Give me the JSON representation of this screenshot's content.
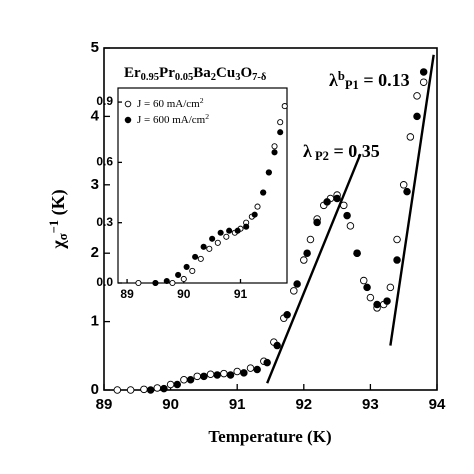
{
  "chart_data": [
    {
      "type": "scatter",
      "title": [
        {
          "text": "Er"
        },
        {
          "text": "0.95",
          "script": "sub"
        },
        {
          "text": "Pr"
        },
        {
          "text": "0.05",
          "script": "sub"
        },
        {
          "text": "Ba"
        },
        {
          "text": "2",
          "script": "sub"
        },
        {
          "text": "Cu"
        },
        {
          "text": "3",
          "script": "sub"
        },
        {
          "text": "O"
        },
        {
          "text": "7-δ",
          "script": "sub"
        }
      ],
      "xlabel": "Temperature (K)",
      "ylabel": [
        {
          "text": "χ"
        },
        {
          "text": "σ",
          "script": "sub"
        },
        {
          "text": "−1",
          "script": "sup"
        },
        {
          "text": " (K)"
        }
      ],
      "xlim": [
        89,
        94
      ],
      "ylim": [
        0,
        5
      ],
      "xticks": [
        89,
        90,
        91,
        92,
        93,
        94
      ],
      "yticks": [
        0,
        1,
        2,
        3,
        4,
        5
      ],
      "series": [
        {
          "marker": "open",
          "color": "#000000",
          "x": [
            89.2,
            89.4,
            89.6,
            89.8,
            90.0,
            90.2,
            90.4,
            90.6,
            90.8,
            91.0,
            91.2,
            91.4,
            91.55,
            91.7,
            91.85,
            92.0,
            92.1,
            92.2,
            92.3,
            92.4,
            92.5,
            92.6,
            92.7,
            92.8,
            92.9,
            93.0,
            93.1,
            93.2,
            93.3,
            93.4,
            93.5,
            93.6,
            93.7,
            93.8
          ],
          "values": [
            0.0,
            0.0,
            0.01,
            0.03,
            0.08,
            0.15,
            0.2,
            0.23,
            0.24,
            0.27,
            0.32,
            0.42,
            0.7,
            1.05,
            1.45,
            1.9,
            2.2,
            2.5,
            2.7,
            2.8,
            2.85,
            2.7,
            2.4,
            2.0,
            1.6,
            1.35,
            1.2,
            1.25,
            1.5,
            2.2,
            3.0,
            3.7,
            4.3,
            4.5
          ]
        },
        {
          "marker": "filled",
          "color": "#000000",
          "x": [
            89.7,
            89.9,
            90.1,
            90.3,
            90.5,
            90.7,
            90.9,
            91.1,
            91.3,
            91.45,
            91.6,
            91.75,
            91.9,
            92.05,
            92.2,
            92.35,
            92.5,
            92.65,
            92.8,
            92.95,
            93.1,
            93.25,
            93.4,
            93.55,
            93.7,
            93.8
          ],
          "values": [
            0.0,
            0.02,
            0.08,
            0.15,
            0.2,
            0.22,
            0.22,
            0.25,
            0.3,
            0.4,
            0.65,
            1.1,
            1.55,
            2.0,
            2.45,
            2.75,
            2.8,
            2.55,
            2.0,
            1.5,
            1.25,
            1.3,
            1.9,
            2.9,
            4.0,
            4.65
          ]
        }
      ],
      "fit_lines": [
        {
          "x": [
            91.45,
            92.85
          ],
          "values": [
            0.1,
            3.45
          ]
        },
        {
          "x": [
            93.3,
            93.95
          ],
          "values": [
            0.65,
            4.9
          ]
        }
      ],
      "annotations": [
        [
          {
            "text": "λ"
          },
          {
            "text": "b",
            "script": "sup"
          },
          {
            "text": "P1",
            "script": "sub"
          },
          {
            "text": " = 0.13"
          }
        ],
        [
          {
            "text": "λ"
          },
          {
            "text": " P2",
            "script": "sub"
          },
          {
            "text": " = 0.35"
          }
        ]
      ]
    },
    {
      "type": "scatter",
      "xlim": [
        88.84,
        91.82
      ],
      "ylim": [
        0,
        0.97
      ],
      "xticks": [
        89,
        90,
        91
      ],
      "yticks": [
        {
          "value": 0,
          "label": "0.0"
        },
        {
          "value": 0.3,
          "label": "0.3"
        },
        {
          "value": 0.6,
          "label": "0.6"
        },
        {
          "value": 0.9,
          "label": "0.9"
        }
      ],
      "legend": "upper left",
      "series": [
        {
          "name": [
            {
              "text": "J =  60 mA/cm"
            },
            {
              "text": "2",
              "script": "sup"
            }
          ],
          "marker": "open",
          "color": "#000000",
          "x": [
            89.2,
            89.5,
            89.8,
            90.0,
            90.15,
            90.3,
            90.45,
            90.6,
            90.75,
            90.9,
            91.0,
            91.1,
            91.2,
            91.3,
            91.4,
            91.5,
            91.6,
            91.7,
            91.78
          ],
          "values": [
            0.0,
            0.0,
            0.0,
            0.02,
            0.06,
            0.12,
            0.17,
            0.2,
            0.23,
            0.25,
            0.27,
            0.3,
            0.33,
            0.38,
            0.45,
            0.55,
            0.68,
            0.8,
            0.88
          ]
        },
        {
          "name": [
            {
              "text": "J = 600 mA/cm"
            },
            {
              "text": "2",
              "script": "sup"
            }
          ],
          "marker": "filled",
          "color": "#000000",
          "x": [
            89.5,
            89.7,
            89.9,
            90.05,
            90.2,
            90.35,
            90.5,
            90.65,
            90.8,
            90.95,
            91.1,
            91.25,
            91.4,
            91.5,
            91.6,
            91.7
          ],
          "values": [
            0.0,
            0.01,
            0.04,
            0.08,
            0.13,
            0.18,
            0.22,
            0.25,
            0.26,
            0.26,
            0.28,
            0.34,
            0.45,
            0.55,
            0.65,
            0.75
          ]
        }
      ]
    }
  ]
}
